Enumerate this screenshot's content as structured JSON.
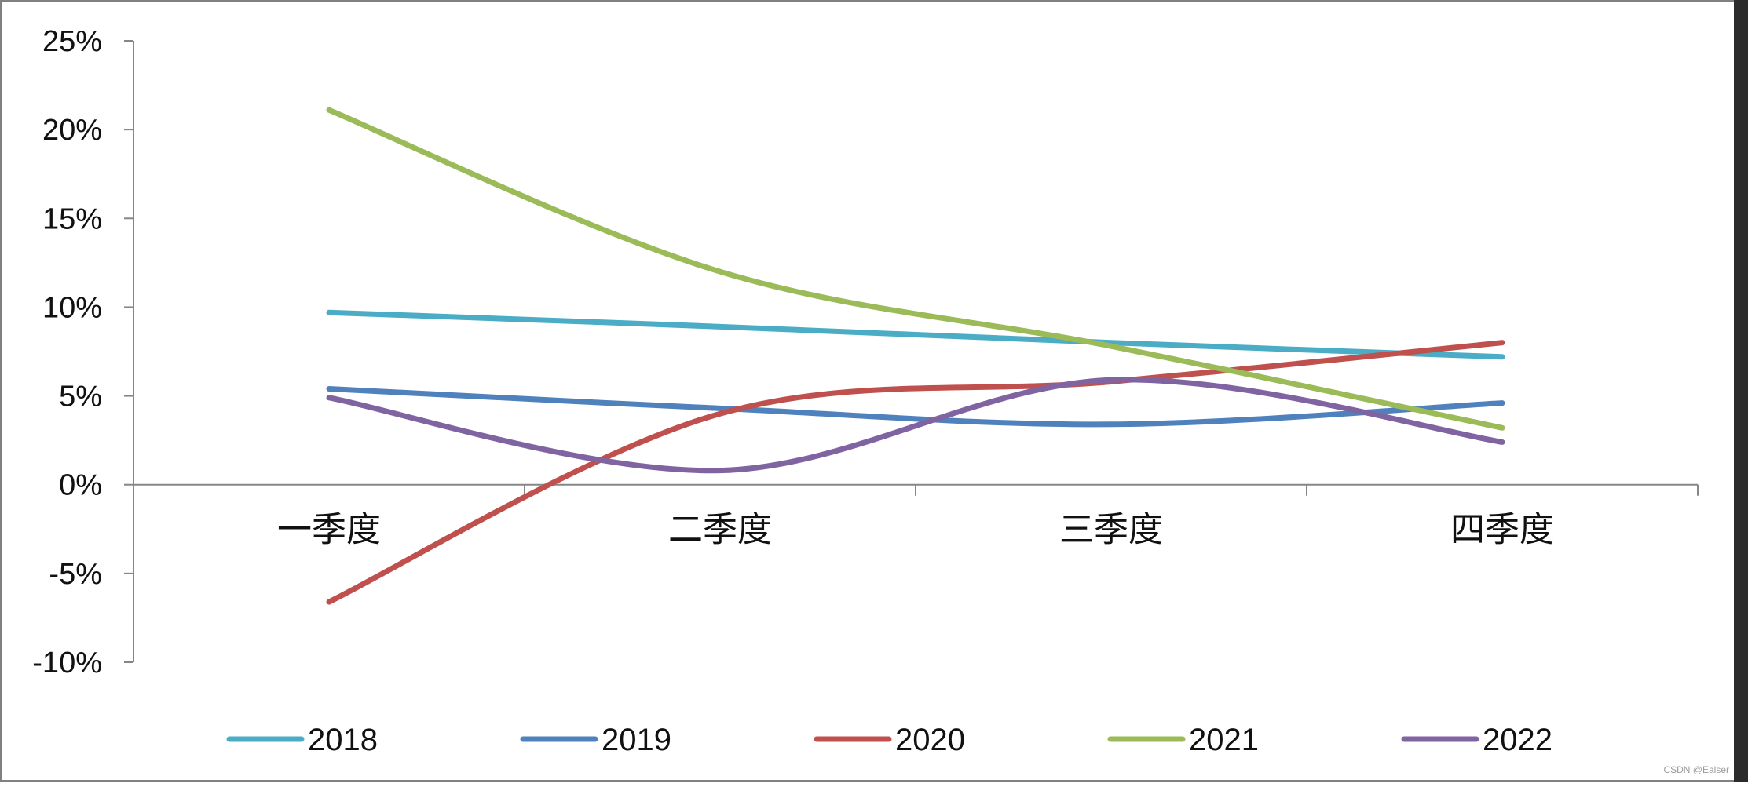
{
  "chart_data": {
    "type": "line",
    "title": "",
    "xlabel": "",
    "ylabel": "",
    "categories": [
      "一季度",
      "二季度",
      "三季度",
      "四季度"
    ],
    "ylim": [
      -0.1,
      0.25
    ],
    "yticks": [
      -0.1,
      -0.05,
      0,
      0.05,
      0.1,
      0.15,
      0.2,
      0.25
    ],
    "ytick_labels": [
      "-10%",
      "-5%",
      "0%",
      "5%",
      "10%",
      "15%",
      "20%",
      "25%"
    ],
    "smooth": true,
    "grid": false,
    "legend_position": "bottom",
    "series": [
      {
        "name": "2018",
        "color": "#4BACC6",
        "values": [
          0.097,
          0.089,
          0.08,
          0.072
        ]
      },
      {
        "name": "2019",
        "color": "#4F81BD",
        "values": [
          0.054,
          0.043,
          0.034,
          0.046
        ]
      },
      {
        "name": "2020",
        "color": "#C0504D",
        "values": [
          -0.066,
          0.04,
          0.058,
          0.08
        ]
      },
      {
        "name": "2021",
        "color": "#9BBB59",
        "values": [
          0.211,
          0.12,
          0.078,
          0.032
        ]
      },
      {
        "name": "2022",
        "color": "#8064A2",
        "values": [
          0.049,
          0.008,
          0.059,
          0.024
        ]
      }
    ]
  },
  "watermark": "CSDN @Ealser"
}
